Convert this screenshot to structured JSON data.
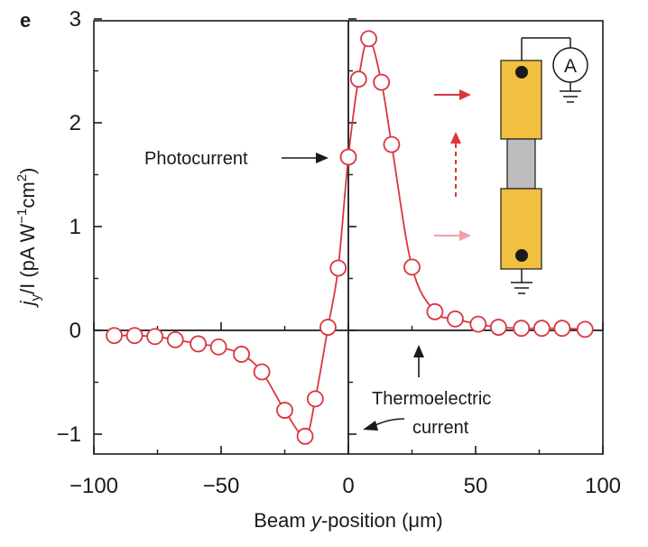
{
  "panel_label": "e",
  "chart_data": {
    "type": "line",
    "title": "",
    "xlabel_pre": "Beam ",
    "xlabel_var": "y",
    "xlabel_post": "-position (μm)",
    "ylabel_j": "j",
    "ylabel_sub": "y",
    "ylabel_mid": "/I (pA W",
    "ylabel_sup1": "−1",
    "ylabel_cm": "cm",
    "ylabel_sup2": "2",
    "ylabel_close": ")",
    "xlim": [
      -100,
      100
    ],
    "ylim": [
      -1.2,
      3
    ],
    "xticks": [
      -100,
      -50,
      0,
      50,
      100
    ],
    "xtick_labels": [
      "−100",
      "−50",
      "0",
      "50",
      "100"
    ],
    "yticks": [
      -1,
      0,
      1,
      2,
      3
    ],
    "ytick_labels": [
      "−1",
      "0",
      "1",
      "2",
      "3"
    ],
    "grid": false,
    "series_color": "#d9363e",
    "x": [
      -92,
      -84,
      -76,
      -68,
      -59,
      -51,
      -42,
      -34,
      -25,
      -17,
      -13,
      -8,
      -4,
      0,
      4,
      8,
      13,
      17,
      25,
      34,
      42,
      51,
      59,
      68,
      76,
      84,
      93
    ],
    "y": [
      -0.05,
      -0.05,
      -0.06,
      -0.09,
      -0.13,
      -0.16,
      -0.23,
      -0.4,
      -0.77,
      -1.02,
      -0.66,
      0.03,
      0.6,
      1.67,
      2.42,
      2.81,
      2.39,
      1.79,
      0.61,
      0.18,
      0.11,
      0.06,
      0.03,
      0.02,
      0.02,
      0.02,
      0.01
    ]
  },
  "annotations": {
    "photocurrent": "Photocurrent",
    "thermo_line1": "Thermoelectric",
    "thermo_line2": "current"
  },
  "device": {
    "meter_label": "A",
    "electrode_color": "#f2c040",
    "channel_color": "#bdbdbd",
    "arrow_color_dark": "#d9363e",
    "arrow_color_light": "#f0a0a6"
  }
}
